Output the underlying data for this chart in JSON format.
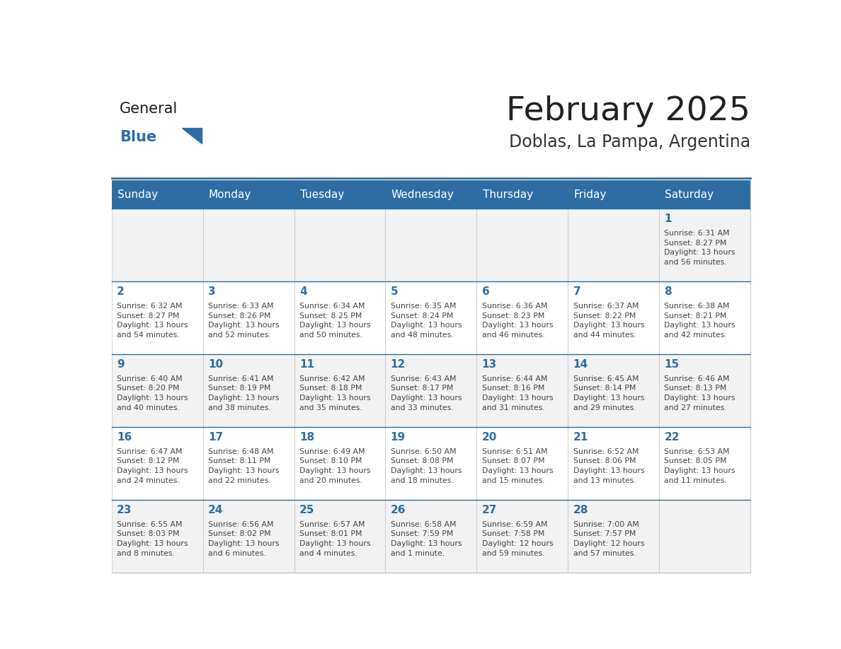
{
  "title": "February 2025",
  "subtitle": "Doblas, La Pampa, Argentina",
  "days_of_week": [
    "Sunday",
    "Monday",
    "Tuesday",
    "Wednesday",
    "Thursday",
    "Friday",
    "Saturday"
  ],
  "header_bg": "#2E6DA4",
  "header_text": "#FFFFFF",
  "cell_bg_even": "#F2F2F2",
  "cell_bg_odd": "#FFFFFF",
  "cell_border": "#BBBBBB",
  "day_num_color": "#2E6DA4",
  "info_color": "#444444",
  "title_color": "#222222",
  "subtitle_color": "#333333",
  "logo_general_color": "#1a1a1a",
  "logo_blue_color": "#2E6DA4",
  "weeks": [
    [
      {
        "day": null,
        "info": ""
      },
      {
        "day": null,
        "info": ""
      },
      {
        "day": null,
        "info": ""
      },
      {
        "day": null,
        "info": ""
      },
      {
        "day": null,
        "info": ""
      },
      {
        "day": null,
        "info": ""
      },
      {
        "day": 1,
        "info": "Sunrise: 6:31 AM\nSunset: 8:27 PM\nDaylight: 13 hours\nand 56 minutes."
      }
    ],
    [
      {
        "day": 2,
        "info": "Sunrise: 6:32 AM\nSunset: 8:27 PM\nDaylight: 13 hours\nand 54 minutes."
      },
      {
        "day": 3,
        "info": "Sunrise: 6:33 AM\nSunset: 8:26 PM\nDaylight: 13 hours\nand 52 minutes."
      },
      {
        "day": 4,
        "info": "Sunrise: 6:34 AM\nSunset: 8:25 PM\nDaylight: 13 hours\nand 50 minutes."
      },
      {
        "day": 5,
        "info": "Sunrise: 6:35 AM\nSunset: 8:24 PM\nDaylight: 13 hours\nand 48 minutes."
      },
      {
        "day": 6,
        "info": "Sunrise: 6:36 AM\nSunset: 8:23 PM\nDaylight: 13 hours\nand 46 minutes."
      },
      {
        "day": 7,
        "info": "Sunrise: 6:37 AM\nSunset: 8:22 PM\nDaylight: 13 hours\nand 44 minutes."
      },
      {
        "day": 8,
        "info": "Sunrise: 6:38 AM\nSunset: 8:21 PM\nDaylight: 13 hours\nand 42 minutes."
      }
    ],
    [
      {
        "day": 9,
        "info": "Sunrise: 6:40 AM\nSunset: 8:20 PM\nDaylight: 13 hours\nand 40 minutes."
      },
      {
        "day": 10,
        "info": "Sunrise: 6:41 AM\nSunset: 8:19 PM\nDaylight: 13 hours\nand 38 minutes."
      },
      {
        "day": 11,
        "info": "Sunrise: 6:42 AM\nSunset: 8:18 PM\nDaylight: 13 hours\nand 35 minutes."
      },
      {
        "day": 12,
        "info": "Sunrise: 6:43 AM\nSunset: 8:17 PM\nDaylight: 13 hours\nand 33 minutes."
      },
      {
        "day": 13,
        "info": "Sunrise: 6:44 AM\nSunset: 8:16 PM\nDaylight: 13 hours\nand 31 minutes."
      },
      {
        "day": 14,
        "info": "Sunrise: 6:45 AM\nSunset: 8:14 PM\nDaylight: 13 hours\nand 29 minutes."
      },
      {
        "day": 15,
        "info": "Sunrise: 6:46 AM\nSunset: 8:13 PM\nDaylight: 13 hours\nand 27 minutes."
      }
    ],
    [
      {
        "day": 16,
        "info": "Sunrise: 6:47 AM\nSunset: 8:12 PM\nDaylight: 13 hours\nand 24 minutes."
      },
      {
        "day": 17,
        "info": "Sunrise: 6:48 AM\nSunset: 8:11 PM\nDaylight: 13 hours\nand 22 minutes."
      },
      {
        "day": 18,
        "info": "Sunrise: 6:49 AM\nSunset: 8:10 PM\nDaylight: 13 hours\nand 20 minutes."
      },
      {
        "day": 19,
        "info": "Sunrise: 6:50 AM\nSunset: 8:08 PM\nDaylight: 13 hours\nand 18 minutes."
      },
      {
        "day": 20,
        "info": "Sunrise: 6:51 AM\nSunset: 8:07 PM\nDaylight: 13 hours\nand 15 minutes."
      },
      {
        "day": 21,
        "info": "Sunrise: 6:52 AM\nSunset: 8:06 PM\nDaylight: 13 hours\nand 13 minutes."
      },
      {
        "day": 22,
        "info": "Sunrise: 6:53 AM\nSunset: 8:05 PM\nDaylight: 13 hours\nand 11 minutes."
      }
    ],
    [
      {
        "day": 23,
        "info": "Sunrise: 6:55 AM\nSunset: 8:03 PM\nDaylight: 13 hours\nand 8 minutes."
      },
      {
        "day": 24,
        "info": "Sunrise: 6:56 AM\nSunset: 8:02 PM\nDaylight: 13 hours\nand 6 minutes."
      },
      {
        "day": 25,
        "info": "Sunrise: 6:57 AM\nSunset: 8:01 PM\nDaylight: 13 hours\nand 4 minutes."
      },
      {
        "day": 26,
        "info": "Sunrise: 6:58 AM\nSunset: 7:59 PM\nDaylight: 13 hours\nand 1 minute."
      },
      {
        "day": 27,
        "info": "Sunrise: 6:59 AM\nSunset: 7:58 PM\nDaylight: 12 hours\nand 59 minutes."
      },
      {
        "day": 28,
        "info": "Sunrise: 7:00 AM\nSunset: 7:57 PM\nDaylight: 12 hours\nand 57 minutes."
      },
      {
        "day": null,
        "info": ""
      }
    ]
  ]
}
